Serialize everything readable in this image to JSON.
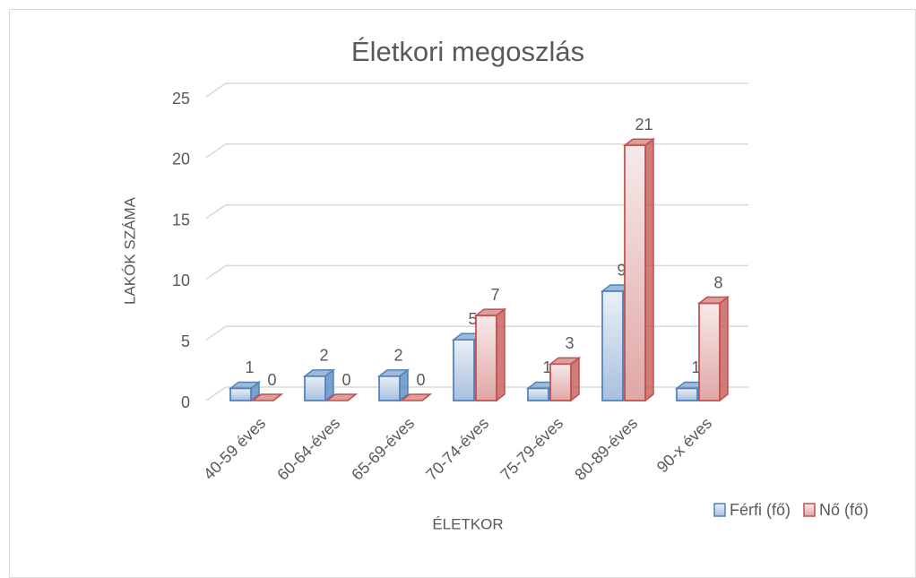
{
  "chart_data": {
    "type": "bar3d",
    "title": "Életkori megoszlás",
    "x_label": "ÉLETKOR",
    "y_label": "LAKÓK SZÁMA",
    "categories": [
      "40-59 éves",
      "60-64-éves",
      "65-69-éves",
      "70-74-éves",
      "75-79-éves",
      "80-89-éves",
      "90-x éves"
    ],
    "series": [
      {
        "name": "Férfi (fő)",
        "color": "#4f81bd",
        "values": [
          1,
          2,
          2,
          5,
          1,
          9,
          1
        ]
      },
      {
        "name": "Nő (fő)",
        "color": "#c0504d",
        "values": [
          0,
          0,
          0,
          7,
          3,
          21,
          8
        ]
      }
    ],
    "ylim": [
      0,
      25
    ],
    "yticks": [
      0,
      5,
      10,
      15,
      20,
      25
    ],
    "grid": true,
    "legend": "bottom-right"
  }
}
